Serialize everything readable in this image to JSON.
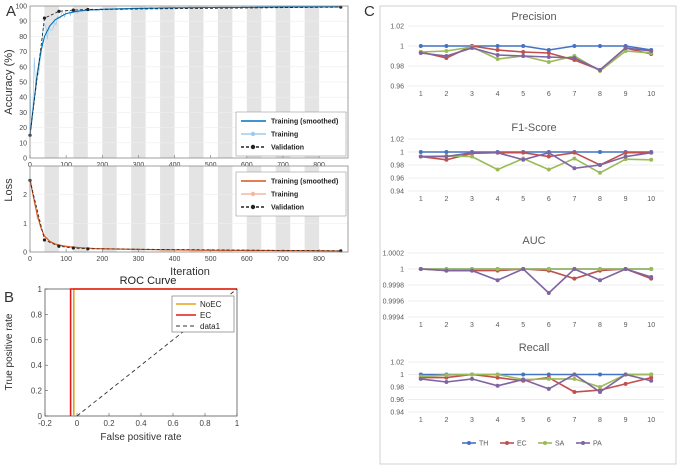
{
  "panel_labels": {
    "a": "A",
    "b": "B",
    "c": "C"
  },
  "colors": {
    "training_line": "#3d9ad1",
    "training_smoothed": "#0072bd",
    "loss_line": "#d95319",
    "loss_light": "#f2b9a0",
    "validation": "#222222",
    "roc_noec": "#e8a21a",
    "roc_ec": "#e3191b",
    "th": "#4472c4",
    "ec": "#c0504d",
    "sa": "#9bbb59",
    "pa": "#8064a2",
    "stripe": "#e4e4e4"
  },
  "chart_data": [
    {
      "id": "accuracy",
      "type": "line",
      "ylabel": "Accuracy (%)",
      "xlabel": "",
      "xlim": [
        0,
        880
      ],
      "ylim": [
        0,
        100
      ],
      "xticks": [
        0,
        100,
        200,
        300,
        400,
        500,
        600,
        700,
        800
      ],
      "yticks": [
        0,
        10,
        20,
        30,
        40,
        50,
        60,
        70,
        80,
        90,
        100
      ],
      "epoch_bands": [
        [
          40,
          80
        ],
        [
          120,
          160
        ],
        [
          200,
          240
        ],
        [
          280,
          320
        ],
        [
          360,
          400
        ],
        [
          440,
          480
        ],
        [
          520,
          560
        ],
        [
          600,
          640
        ],
        [
          680,
          720
        ],
        [
          760,
          800
        ]
      ],
      "legend": [
        "Training (smoothed)",
        "Training",
        "Validation"
      ],
      "series": [
        {
          "name": "Training (smoothed)",
          "x": [
            0,
            10,
            20,
            30,
            40,
            55,
            70,
            85,
            100,
            130,
            160,
            200,
            260,
            320,
            400,
            500,
            600,
            700,
            800,
            860
          ],
          "y": [
            15,
            35,
            55,
            70,
            80,
            87,
            91,
            93,
            95,
            96.5,
            97.3,
            97.8,
            98.2,
            98.5,
            98.8,
            99.0,
            99.1,
            99.3,
            99.4,
            99.5
          ]
        },
        {
          "name": "Validation",
          "x": [
            0,
            40,
            80,
            120,
            160,
            860
          ],
          "y": [
            15,
            92,
            96.5,
            97.3,
            97.7,
            99.3
          ]
        }
      ]
    },
    {
      "id": "loss",
      "type": "line",
      "ylabel": "Loss",
      "xlabel": "Iteration",
      "xlim": [
        0,
        880
      ],
      "ylim": [
        0,
        3
      ],
      "xticks": [
        0,
        100,
        200,
        300,
        400,
        500,
        600,
        700,
        800
      ],
      "yticks": [
        0,
        1,
        2
      ],
      "legend": [
        "Training (smoothed)",
        "Training",
        "Validation"
      ],
      "series": [
        {
          "name": "Training (smoothed)",
          "x": [
            0,
            10,
            20,
            30,
            40,
            55,
            70,
            90,
            110,
            140,
            180,
            250,
            350,
            500,
            700,
            860
          ],
          "y": [
            2.5,
            1.9,
            1.3,
            0.85,
            0.55,
            0.37,
            0.28,
            0.22,
            0.18,
            0.15,
            0.12,
            0.1,
            0.08,
            0.06,
            0.05,
            0.04
          ]
        },
        {
          "name": "Validation",
          "x": [
            0,
            40,
            80,
            120,
            160,
            860
          ],
          "y": [
            2.5,
            0.42,
            0.2,
            0.14,
            0.11,
            0.04
          ]
        }
      ]
    },
    {
      "id": "roc",
      "type": "line",
      "title": "ROC Curve",
      "xlabel": "False positive rate",
      "ylabel": "True positive rate",
      "xlim": [
        -0.2,
        1
      ],
      "ylim": [
        0,
        1
      ],
      "xticks": [
        -0.2,
        0,
        0.2,
        0.4,
        0.6,
        0.8,
        1
      ],
      "xtick_labels": [
        "-0.2",
        "0",
        "0.2",
        "0.4",
        "0.6",
        "0.8",
        "1"
      ],
      "yticks": [
        0,
        0.2,
        0.4,
        0.6,
        0.8,
        1
      ],
      "ytick_labels": [
        "0",
        "0.2",
        "0.4",
        "0.6",
        "0.8",
        "1"
      ],
      "legend": [
        "NoEC",
        "EC",
        "data1"
      ],
      "series": [
        {
          "name": "NoEC",
          "x": [
            -0.02,
            -0.02,
            1
          ],
          "y": [
            0,
            1,
            1
          ]
        },
        {
          "name": "EC",
          "x": [
            -0.04,
            -0.04,
            1
          ],
          "y": [
            0,
            1,
            1
          ]
        },
        {
          "name": "data1",
          "x": [
            0,
            1
          ],
          "y": [
            0,
            1
          ]
        }
      ]
    },
    {
      "id": "precision",
      "type": "line",
      "title": "Precision",
      "categories": [
        "1",
        "2",
        "3",
        "4",
        "5",
        "6",
        "7",
        "8",
        "9",
        "10"
      ],
      "ylim": [
        0.96,
        1.02
      ],
      "yticks": [
        0.96,
        0.98,
        1,
        1.02
      ],
      "ytick_labels": [
        "0.96",
        "0.98",
        "1",
        "1.02"
      ],
      "series": [
        {
          "name": "TH",
          "values": [
            1,
            1,
            1,
            1,
            1,
            0.996,
            1,
            1,
            1,
            0.996
          ]
        },
        {
          "name": "EC",
          "values": [
            0.994,
            0.988,
            1,
            0.996,
            0.994,
            0.993,
            0.986,
            0.976,
            0.998,
            0.992
          ]
        },
        {
          "name": "SA",
          "values": [
            0.994,
            0.995,
            0.999,
            0.987,
            0.99,
            0.984,
            0.99,
            0.975,
            0.995,
            0.993
          ]
        },
        {
          "name": "PA",
          "values": [
            0.993,
            0.99,
            0.998,
            0.991,
            0.99,
            0.989,
            0.988,
            0.976,
            0.998,
            0.995
          ]
        }
      ]
    },
    {
      "id": "f1",
      "type": "line",
      "title": "F1-Score",
      "categories": [
        "1",
        "2",
        "3",
        "4",
        "5",
        "6",
        "7",
        "8",
        "9",
        "10"
      ],
      "ylim": [
        0.94,
        1.02
      ],
      "yticks": [
        0.94,
        0.96,
        0.98,
        1,
        1.02
      ],
      "ytick_labels": [
        "0.94",
        "0.96",
        "0.98",
        "1",
        "1.02"
      ],
      "series": [
        {
          "name": "TH",
          "values": [
            1,
            1,
            1,
            1,
            1,
            1,
            1,
            1,
            1,
            1
          ]
        },
        {
          "name": "EC",
          "values": [
            0.993,
            0.988,
            0.998,
            0.999,
            0.999,
            0.993,
            0.999,
            0.98,
            0.999,
            0.999
          ]
        },
        {
          "name": "SA",
          "values": [
            0.993,
            0.994,
            0.993,
            0.973,
            0.99,
            0.973,
            0.99,
            0.968,
            0.989,
            0.988
          ]
        },
        {
          "name": "PA",
          "values": [
            0.993,
            0.993,
            0.999,
            0.999,
            0.988,
            0.999,
            0.975,
            0.98,
            0.993,
            0.999
          ]
        }
      ]
    },
    {
      "id": "auc",
      "type": "line",
      "title": "AUC",
      "categories": [
        "1",
        "2",
        "3",
        "4",
        "5",
        "6",
        "7",
        "8",
        "9",
        "10"
      ],
      "ylim": [
        0.9994,
        1.0002
      ],
      "yticks": [
        0.9994,
        0.9996,
        0.9998,
        1,
        1.0002
      ],
      "ytick_labels": [
        "0.9994",
        "0.9996",
        "0.9998",
        "1",
        "1.0002"
      ],
      "series": [
        {
          "name": "TH",
          "values": [
            1,
            1,
            1,
            1,
            1,
            1,
            1,
            1,
            1,
            1
          ]
        },
        {
          "name": "EC",
          "values": [
            1,
            0.99998,
            0.99998,
            0.99998,
            1,
            0.99998,
            0.99988,
            0.99998,
            1,
            0.99988
          ]
        },
        {
          "name": "SA",
          "values": [
            1,
            1,
            1,
            1,
            1,
            1,
            1,
            1,
            1,
            1
          ]
        },
        {
          "name": "PA",
          "values": [
            1,
            0.99998,
            0.99998,
            0.99986,
            1,
            0.9997,
            1,
            0.99986,
            1,
            0.9999
          ]
        }
      ]
    },
    {
      "id": "recall",
      "type": "line",
      "title": "Recall",
      "categories": [
        "1",
        "2",
        "3",
        "4",
        "5",
        "6",
        "7",
        "8",
        "9",
        "10"
      ],
      "ylim": [
        0.94,
        1.02
      ],
      "yticks": [
        0.94,
        0.96,
        0.98,
        1,
        1.02
      ],
      "ytick_labels": [
        "0.94",
        "0.96",
        "0.98",
        "1",
        "1.02"
      ],
      "legend": [
        "TH",
        "EC",
        "SA",
        "PA"
      ],
      "series": [
        {
          "name": "TH",
          "values": [
            1,
            1,
            1,
            1,
            1,
            1,
            1,
            1,
            1,
            1
          ]
        },
        {
          "name": "EC",
          "values": [
            0.995,
            0.995,
            1,
            0.995,
            0.99,
            0.995,
            0.972,
            0.975,
            0.985,
            0.995
          ]
        },
        {
          "name": "SA",
          "values": [
            0.997,
            0.999,
            1,
            1,
            0.992,
            0.993,
            0.993,
            0.98,
            1,
            1
          ]
        },
        {
          "name": "PA",
          "values": [
            0.993,
            0.988,
            0.993,
            0.982,
            0.992,
            0.977,
            1,
            0.972,
            1,
            0.99
          ]
        }
      ]
    }
  ]
}
